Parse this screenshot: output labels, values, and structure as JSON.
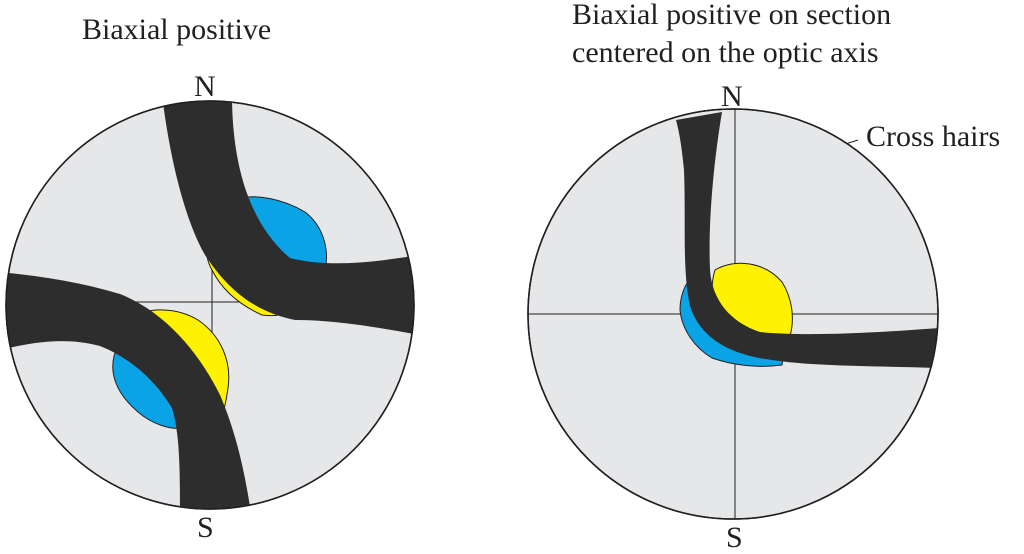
{
  "left_figure": {
    "title": "Biaxial positive",
    "north_label": "N",
    "south_label": "S"
  },
  "right_figure": {
    "title_line1": "Biaxial positive on section",
    "title_line2": "centered on the optic axis",
    "north_label": "N",
    "south_label": "S",
    "annotation": "Cross hairs"
  },
  "colors": {
    "field": "#e6e7e9",
    "outline": "#231f20",
    "isogyre": "#2d2d2e",
    "blue": "#0aa4e6",
    "yellow": "#fff200"
  }
}
